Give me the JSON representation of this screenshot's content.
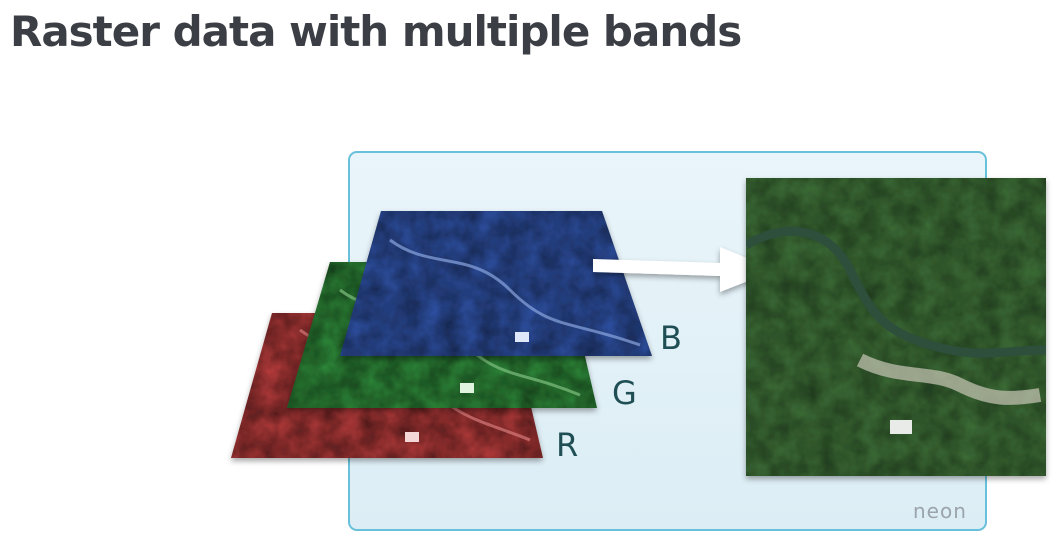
{
  "title": "Raster data with multiple bands",
  "bands": [
    {
      "id": "red",
      "label": "R",
      "color": "#b33a3a"
    },
    {
      "id": "green",
      "label": "G",
      "color": "#2f8a3a"
    },
    {
      "id": "blue",
      "label": "B",
      "color": "#2e4fa0"
    }
  ],
  "logo": "neon",
  "colors": {
    "title": "#3b3f45",
    "panel_fill": "#e4f2f8",
    "panel_border": "#69c0da",
    "label": "#1f4f55",
    "composite": "#3d6e37",
    "arrow": "#ffffff",
    "logo": "#9aa4aa"
  }
}
